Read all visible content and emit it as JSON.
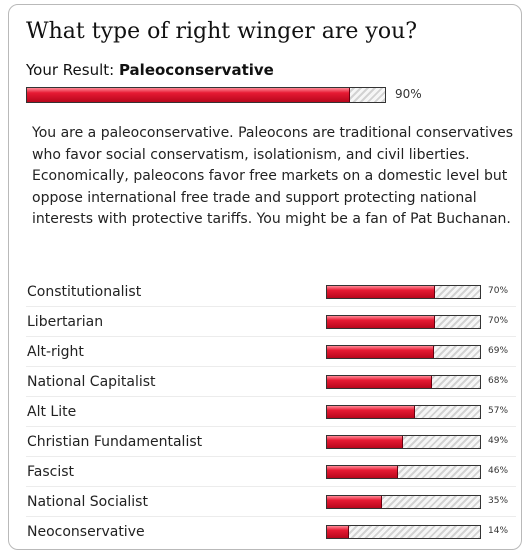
{
  "quiz": {
    "title": "What type of right winger are you?",
    "result_prefix": "Your Result: ",
    "result_name": "Paleoconservative",
    "result_percent": 90,
    "result_percent_label": "90%",
    "description": "You are a paleoconservative. Paleocons are traditional conservatives who favor social conservatism, isolationism, and civil liberties. Economically, paleocons favor free markets on a domestic level but oppose international free trade and support protecting national interests with protective tariffs. You might be a fan of Pat Buchanan."
  },
  "results": [
    {
      "label": "Constitutionalist",
      "percent": 70,
      "percent_label": "70%"
    },
    {
      "label": "Libertarian",
      "percent": 70,
      "percent_label": "70%"
    },
    {
      "label": "Alt-right",
      "percent": 69,
      "percent_label": "69%"
    },
    {
      "label": "National Capitalist",
      "percent": 68,
      "percent_label": "68%"
    },
    {
      "label": "Alt Lite",
      "percent": 57,
      "percent_label": "57%"
    },
    {
      "label": "Christian Fundamentalist",
      "percent": 49,
      "percent_label": "49%"
    },
    {
      "label": "Fascist",
      "percent": 46,
      "percent_label": "46%"
    },
    {
      "label": "National Socialist",
      "percent": 35,
      "percent_label": "35%"
    },
    {
      "label": "Neoconservative",
      "percent": 14,
      "percent_label": "14%"
    }
  ],
  "colors": {
    "bar_fill": "#d91530",
    "bar_border": "#333333",
    "card_border": "#b9b9b9"
  }
}
